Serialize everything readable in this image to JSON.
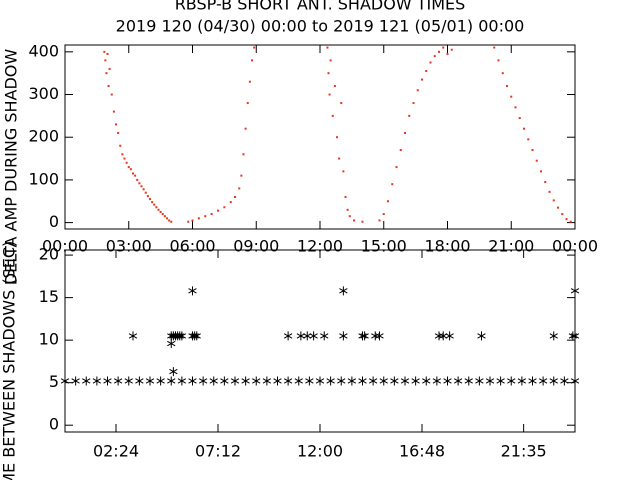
{
  "chart_data": [
    {
      "type": "scatter",
      "marker": "dot",
      "color": "#e8351e",
      "title": "RBSP-B SHORT ANT. SHADOW TIMES",
      "subtitle": "2019 120 (04/30) 00:00 to 2019 121 (05/01) 00:00",
      "ylabel": "DELTA AMP DURING SHADOW",
      "xlim": [
        0,
        24
      ],
      "ylim": [
        -15,
        416
      ],
      "xticks": [
        {
          "value": 0,
          "label": "00:00"
        },
        {
          "value": 3,
          "label": "03:00"
        },
        {
          "value": 6,
          "label": "06:00"
        },
        {
          "value": 9,
          "label": "09:00"
        },
        {
          "value": 12,
          "label": "12:00"
        },
        {
          "value": 15,
          "label": "15:00"
        },
        {
          "value": 18,
          "label": "18:00"
        },
        {
          "value": 21,
          "label": "21:00"
        },
        {
          "value": 24,
          "label": "00:00"
        }
      ],
      "yticks": [
        0,
        100,
        200,
        300,
        400
      ],
      "x": [
        1.85,
        1.9,
        1.95,
        2.0,
        2.05,
        2.1,
        2.2,
        2.3,
        2.4,
        2.5,
        2.6,
        2.7,
        2.8,
        2.9,
        3.0,
        3.1,
        3.2,
        3.3,
        3.4,
        3.5,
        3.6,
        3.7,
        3.8,
        3.9,
        4.0,
        4.1,
        4.2,
        4.3,
        4.4,
        4.5,
        4.6,
        4.7,
        4.8,
        4.9,
        5.0,
        5.8,
        6.0,
        6.3,
        6.6,
        6.9,
        7.2,
        7.5,
        7.8,
        8.0,
        8.2,
        8.3,
        8.4,
        8.5,
        8.6,
        8.7,
        8.8,
        8.9,
        12.35,
        12.4,
        12.45,
        12.5,
        12.6,
        12.7,
        12.8,
        12.9,
        13.0,
        13.1,
        13.2,
        13.3,
        13.4,
        13.6,
        14.0,
        14.8,
        15.0,
        15.2,
        15.4,
        15.6,
        15.8,
        16.0,
        16.2,
        16.4,
        16.6,
        16.8,
        17.0,
        17.2,
        17.4,
        17.6,
        17.8,
        18.0,
        18.2,
        20.2,
        20.4,
        20.6,
        20.8,
        21.0,
        21.2,
        21.4,
        21.6,
        21.8,
        22.0,
        22.2,
        22.4,
        22.6,
        22.8,
        23.0,
        23.2,
        23.4,
        23.6,
        23.8
      ],
      "values": [
        400,
        380,
        350,
        395,
        320,
        360,
        300,
        260,
        230,
        210,
        180,
        160,
        150,
        140,
        130,
        125,
        115,
        110,
        100,
        92,
        85,
        78,
        70,
        62,
        55,
        48,
        42,
        36,
        30,
        25,
        20,
        15,
        10,
        5,
        2,
        2,
        5,
        10,
        15,
        20,
        28,
        36,
        48,
        60,
        80,
        110,
        160,
        220,
        280,
        330,
        380,
        410,
        410,
        350,
        300,
        380,
        250,
        320,
        200,
        150,
        280,
        120,
        60,
        30,
        15,
        5,
        2,
        5,
        20,
        50,
        90,
        130,
        170,
        210,
        250,
        280,
        310,
        335,
        355,
        375,
        390,
        400,
        410,
        395,
        405,
        410,
        380,
        350,
        320,
        295,
        270,
        245,
        220,
        195,
        170,
        145,
        120,
        95,
        72,
        52,
        35,
        20,
        8,
        2
      ]
    },
    {
      "type": "scatter",
      "marker": "asterisk",
      "color": "#000000",
      "ylabel": "TIME BETWEEN SHADOWS (SEC)",
      "xlim": [
        0,
        24
      ],
      "ylim": [
        -0.8,
        20.6
      ],
      "xticks": [
        {
          "value": 2.4,
          "label": "02:24"
        },
        {
          "value": 7.2,
          "label": "07:12"
        },
        {
          "value": 12,
          "label": "12:00"
        },
        {
          "value": 16.8,
          "label": "16:48"
        },
        {
          "value": 21.583,
          "label": "21:35"
        }
      ],
      "yticks": [
        0,
        5,
        10,
        15,
        20
      ],
      "x": [
        0,
        0.5,
        1,
        1.5,
        2,
        2.5,
        3,
        3.5,
        4,
        4.5,
        5,
        5.5,
        6,
        6.5,
        7,
        7.5,
        8,
        8.5,
        9,
        9.5,
        10,
        10.5,
        11,
        11.5,
        12,
        12.5,
        13,
        13.5,
        14,
        14.5,
        15,
        15.5,
        16,
        16.5,
        17,
        17.5,
        18,
        18.5,
        19,
        19.5,
        20,
        20.5,
        21,
        21.5,
        22,
        22.5,
        23,
        23.5,
        24,
        3.2,
        5.0,
        5.1,
        5.2,
        5.3,
        5.4,
        5.5,
        5.0,
        5.1,
        6.0,
        6.1,
        6.2,
        6.0,
        10.5,
        11.1,
        11.4,
        11.7,
        12.2,
        13.1,
        13.1,
        14.0,
        14.1,
        14.6,
        14.8,
        17.6,
        17.8,
        18.1,
        19.6,
        23.0,
        23.9,
        24.0,
        24.0
      ],
      "values": [
        5.2,
        5.2,
        5.2,
        5.2,
        5.2,
        5.2,
        5.2,
        5.2,
        5.2,
        5.2,
        5.2,
        5.2,
        5.2,
        5.2,
        5.2,
        5.2,
        5.2,
        5.2,
        5.2,
        5.2,
        5.2,
        5.2,
        5.2,
        5.2,
        5.2,
        5.2,
        5.2,
        5.2,
        5.2,
        5.2,
        5.2,
        5.2,
        5.2,
        5.2,
        5.2,
        5.2,
        5.2,
        5.2,
        5.2,
        5.2,
        5.2,
        5.2,
        5.2,
        5.2,
        5.2,
        5.2,
        5.2,
        5.2,
        5.2,
        10.5,
        10.5,
        10.5,
        10.5,
        10.5,
        10.5,
        10.5,
        9.6,
        6.3,
        10.5,
        10.5,
        10.5,
        15.8,
        10.5,
        10.5,
        10.5,
        10.5,
        10.5,
        10.5,
        15.8,
        10.5,
        10.5,
        10.5,
        10.5,
        10.5,
        10.5,
        10.5,
        10.5,
        10.5,
        10.5,
        15.8,
        10.5
      ]
    }
  ]
}
